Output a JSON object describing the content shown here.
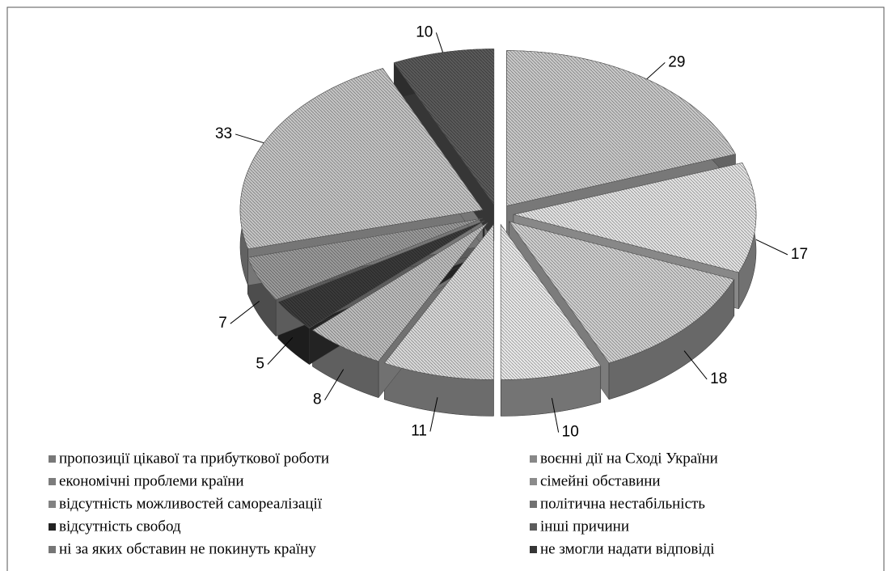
{
  "chart_data": {
    "type": "pie",
    "categories": [
      "пропозиції цікавої та прибуткової роботи",
      "воєнні дії на Сході України",
      "економічні проблеми країни",
      "сімейні обставини",
      "відсутність можливостей самореалізації",
      "політична нестабільність",
      "відсутність свобод",
      "інші причини",
      "ні за яких обставин не покинуть країну",
      "не змогли надати відповіді"
    ],
    "values": [
      29,
      17,
      18,
      10,
      11,
      8,
      5,
      7,
      33,
      10
    ],
    "colors": [
      "#c8c8c8",
      "#e2e2e2",
      "#cfcfcf",
      "#e8e8e8",
      "#d8d8d8",
      "#bdbdbd",
      "#3a3a3a",
      "#9a9a9a",
      "#c4c4c4",
      "#5a5a5a"
    ],
    "legend": "bottom"
  }
}
